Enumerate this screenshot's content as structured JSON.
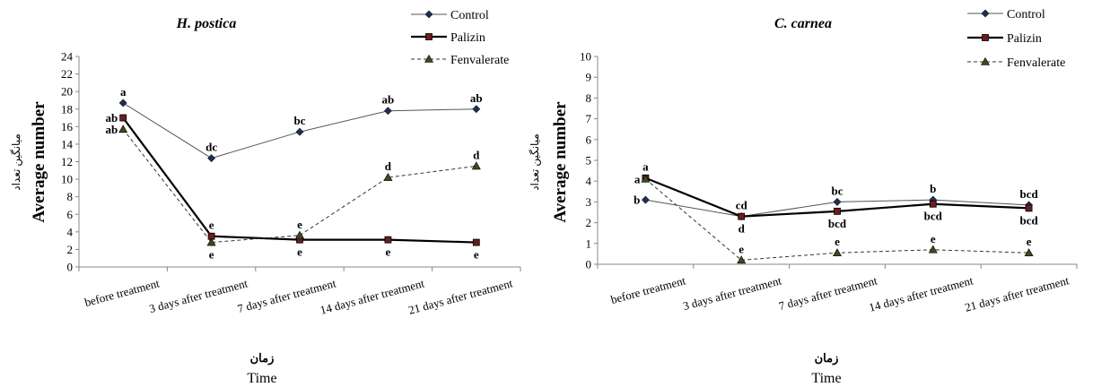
{
  "chart_data": [
    {
      "type": "line",
      "title": "H. postica",
      "ylabel": "Average number",
      "ylabel_alt": "میانگین تعداد",
      "xlabel": "Time",
      "xlabel_alt": "زمان",
      "ylim": [
        0,
        24
      ],
      "yticks": [
        0,
        2,
        4,
        6,
        8,
        10,
        12,
        14,
        16,
        18,
        20,
        22,
        24
      ],
      "categories": [
        "before treatment",
        "3 days after treatment",
        "7 days after treatment",
        "14 days after treatment",
        "21 days after treatment"
      ],
      "legend_position": "top-right",
      "series": [
        {
          "name": "Control",
          "values": [
            18.7,
            12.4,
            15.4,
            17.8,
            18.0
          ],
          "color": "#555555",
          "marker": "diamond",
          "dash": false,
          "width": 1,
          "letters": [
            "a",
            "dc",
            "bc",
            "ab",
            "ab"
          ],
          "letter_pos": [
            "above",
            "above",
            "above",
            "above",
            "above"
          ]
        },
        {
          "name": "Palizin",
          "values": [
            17.0,
            3.5,
            3.1,
            3.1,
            2.8
          ],
          "color": "#000000",
          "marker": "square",
          "dash": false,
          "width": 2.2,
          "letters": [
            "ab",
            "e",
            "e",
            "e",
            "e"
          ],
          "letter_pos": [
            "left",
            "above",
            "below",
            "below",
            "below"
          ]
        },
        {
          "name": "Fenvalerate",
          "values": [
            15.7,
            2.8,
            3.6,
            10.2,
            11.5
          ],
          "color": "#333333",
          "marker": "triangle",
          "dash": true,
          "width": 1,
          "letters": [
            "ab",
            "e",
            "e",
            "d",
            "d"
          ],
          "letter_pos": [
            "left",
            "below",
            "above",
            "above",
            "above"
          ]
        }
      ]
    },
    {
      "type": "line",
      "title": "C. carnea",
      "ylabel": "Average number",
      "ylabel_alt": "میانگین تعداد",
      "xlabel": "Time",
      "xlabel_alt": "زمان",
      "ylim": [
        0,
        10
      ],
      "yticks": [
        0,
        1,
        2,
        3,
        4,
        5,
        6,
        7,
        8,
        9,
        10
      ],
      "categories": [
        "before treatment",
        "3 days after treatment",
        "7 days after treatment",
        "14 days after treatment",
        "21 days after treatment"
      ],
      "legend_position": "top-right",
      "series": [
        {
          "name": "Control",
          "values": [
            3.1,
            2.3,
            3.0,
            3.1,
            2.85
          ],
          "color": "#555555",
          "marker": "diamond",
          "dash": false,
          "width": 1,
          "letters": [
            "b",
            "cd",
            "bc",
            "b",
            "bcd"
          ],
          "letter_pos": [
            "left",
            "above",
            "above",
            "above",
            "above"
          ]
        },
        {
          "name": "Palizin",
          "values": [
            4.15,
            2.3,
            2.55,
            2.9,
            2.7
          ],
          "color": "#000000",
          "marker": "square",
          "dash": false,
          "width": 2.2,
          "letters": [
            "a",
            "d",
            "bcd",
            "bcd",
            "bcd"
          ],
          "letter_pos": [
            "above",
            "below",
            "below",
            "below",
            "below"
          ]
        },
        {
          "name": "Fenvalerate",
          "values": [
            4.1,
            0.2,
            0.55,
            0.7,
            0.55
          ],
          "color": "#333333",
          "marker": "triangle",
          "dash": true,
          "width": 1,
          "letters": [
            "a",
            "e",
            "e",
            "e",
            "e"
          ],
          "letter_pos": [
            "left",
            "above",
            "above",
            "above",
            "above"
          ]
        }
      ]
    }
  ]
}
